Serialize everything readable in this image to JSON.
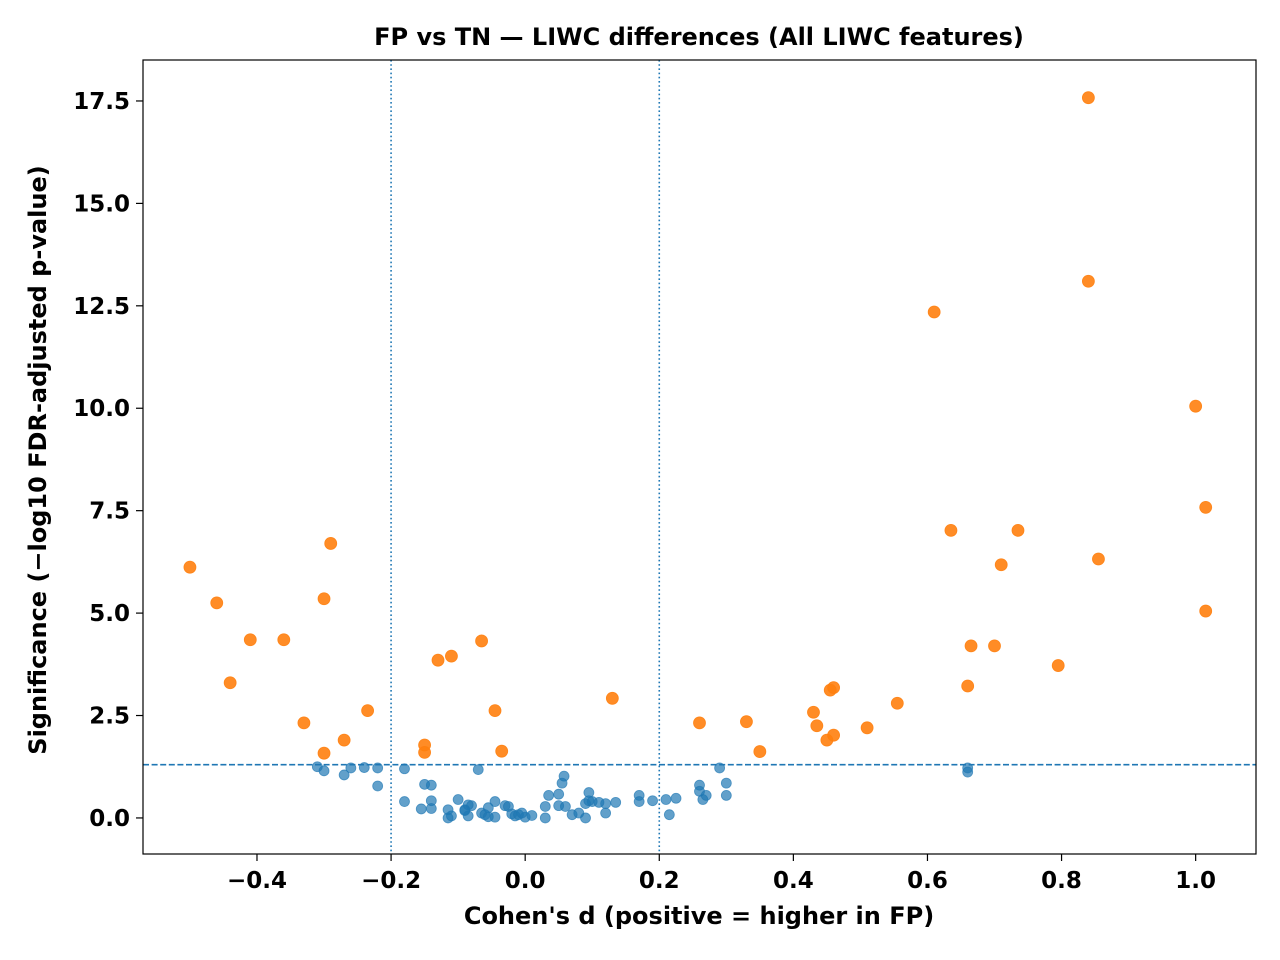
{
  "chart_data": {
    "type": "scatter",
    "title": "FP vs TN — LIWC differences (All LIWC features)",
    "xlabel": "Cohen's d (positive = higher in FP)",
    "ylabel": "Significance (−log10 FDR-adjusted p-value)",
    "xlim": [
      -0.57,
      1.09
    ],
    "ylim": [
      -0.88,
      18.5
    ],
    "xticks": [
      -0.4,
      -0.2,
      0.0,
      0.2,
      0.4,
      0.6,
      0.8,
      1.0
    ],
    "xtick_labels": [
      "−0.4",
      "−0.2",
      "0.0",
      "0.2",
      "0.4",
      "0.6",
      "0.8",
      "1.0"
    ],
    "yticks": [
      0.0,
      2.5,
      5.0,
      7.5,
      10.0,
      12.5,
      15.0,
      17.5
    ],
    "ytick_labels": [
      "0.0",
      "2.5",
      "5.0",
      "7.5",
      "10.0",
      "12.5",
      "15.0",
      "17.5"
    ],
    "grid": false,
    "reference_lines": {
      "horizontal": {
        "y": 1.3,
        "style": "dashed",
        "color": "#1f77b4"
      },
      "vertical": [
        {
          "x": -0.2,
          "style": "dotted",
          "color": "#1f77b4"
        },
        {
          "x": 0.2,
          "style": "dotted",
          "color": "#1f77b4"
        }
      ]
    },
    "series": [
      {
        "color": "#1f77b4",
        "alpha": 0.7,
        "points": [
          [
            -0.31,
            1.25
          ],
          [
            -0.3,
            1.15
          ],
          [
            -0.26,
            1.22
          ],
          [
            -0.27,
            1.05
          ],
          [
            -0.24,
            1.23
          ],
          [
            -0.22,
            1.22
          ],
          [
            -0.22,
            0.78
          ],
          [
            -0.18,
            1.2
          ],
          [
            -0.18,
            0.4
          ],
          [
            -0.15,
            0.82
          ],
          [
            -0.14,
            0.8
          ],
          [
            -0.14,
            0.42
          ],
          [
            -0.14,
            0.23
          ],
          [
            -0.155,
            0.22
          ],
          [
            -0.115,
            0.2
          ],
          [
            -0.115,
            0.0
          ],
          [
            -0.11,
            0.05
          ],
          [
            -0.1,
            0.45
          ],
          [
            -0.085,
            0.32
          ],
          [
            -0.09,
            0.18
          ],
          [
            -0.08,
            0.3
          ],
          [
            -0.085,
            0.05
          ],
          [
            -0.09,
            0.2
          ],
          [
            -0.07,
            1.18
          ],
          [
            -0.065,
            0.12
          ],
          [
            -0.06,
            0.08
          ],
          [
            -0.055,
            0.03
          ],
          [
            -0.055,
            0.25
          ],
          [
            -0.045,
            0.4
          ],
          [
            -0.045,
            0.02
          ],
          [
            -0.03,
            0.3
          ],
          [
            -0.025,
            0.28
          ],
          [
            -0.02,
            0.1
          ],
          [
            -0.015,
            0.05
          ],
          [
            -0.01,
            0.08
          ],
          [
            -0.005,
            0.12
          ],
          [
            0.0,
            0.02
          ],
          [
            0.01,
            0.06
          ],
          [
            0.03,
            0.28
          ],
          [
            0.035,
            0.55
          ],
          [
            0.03,
            0.0
          ],
          [
            0.05,
            0.58
          ],
          [
            0.055,
            0.85
          ],
          [
            0.058,
            1.02
          ],
          [
            0.05,
            0.3
          ],
          [
            0.06,
            0.28
          ],
          [
            0.07,
            0.08
          ],
          [
            0.08,
            0.12
          ],
          [
            0.09,
            0.35
          ],
          [
            0.095,
            0.62
          ],
          [
            0.095,
            0.42
          ],
          [
            0.1,
            0.4
          ],
          [
            0.11,
            0.38
          ],
          [
            0.12,
            0.35
          ],
          [
            0.12,
            0.12
          ],
          [
            0.09,
            0.0
          ],
          [
            0.135,
            0.38
          ],
          [
            0.17,
            0.55
          ],
          [
            0.17,
            0.4
          ],
          [
            0.19,
            0.42
          ],
          [
            0.21,
            0.45
          ],
          [
            0.215,
            0.08
          ],
          [
            0.225,
            0.48
          ],
          [
            0.26,
            0.8
          ],
          [
            0.26,
            0.65
          ],
          [
            0.265,
            0.45
          ],
          [
            0.27,
            0.55
          ],
          [
            0.29,
            1.22
          ],
          [
            0.3,
            0.85
          ],
          [
            0.3,
            0.55
          ],
          [
            0.66,
            1.22
          ],
          [
            0.66,
            1.12
          ]
        ]
      },
      {
        "color": "#ff7f0e",
        "alpha": 0.9,
        "points": [
          [
            -0.5,
            6.12
          ],
          [
            -0.46,
            5.25
          ],
          [
            -0.44,
            3.3
          ],
          [
            -0.41,
            4.35
          ],
          [
            -0.36,
            4.35
          ],
          [
            -0.33,
            2.32
          ],
          [
            -0.3,
            5.35
          ],
          [
            -0.29,
            6.7
          ],
          [
            -0.3,
            1.58
          ],
          [
            -0.27,
            1.9
          ],
          [
            -0.235,
            2.62
          ],
          [
            -0.15,
            1.78
          ],
          [
            -0.15,
            1.6
          ],
          [
            -0.13,
            3.85
          ],
          [
            -0.11,
            3.95
          ],
          [
            -0.065,
            4.32
          ],
          [
            -0.045,
            2.62
          ],
          [
            -0.035,
            1.63
          ],
          [
            0.13,
            2.92
          ],
          [
            0.26,
            2.32
          ],
          [
            0.33,
            2.35
          ],
          [
            0.35,
            1.62
          ],
          [
            0.43,
            2.58
          ],
          [
            0.435,
            2.25
          ],
          [
            0.45,
            1.9
          ],
          [
            0.455,
            3.12
          ],
          [
            0.46,
            3.18
          ],
          [
            0.46,
            2.02
          ],
          [
            0.51,
            2.2
          ],
          [
            0.555,
            2.8
          ],
          [
            0.61,
            12.35
          ],
          [
            0.635,
            7.02
          ],
          [
            0.66,
            3.22
          ],
          [
            0.665,
            4.2
          ],
          [
            0.7,
            4.2
          ],
          [
            0.71,
            6.18
          ],
          [
            0.735,
            7.02
          ],
          [
            0.795,
            3.72
          ],
          [
            0.84,
            17.58
          ],
          [
            0.84,
            13.1
          ],
          [
            0.855,
            6.32
          ],
          [
            1.0,
            10.05
          ],
          [
            1.015,
            7.58
          ],
          [
            1.015,
            5.05
          ]
        ]
      }
    ]
  }
}
